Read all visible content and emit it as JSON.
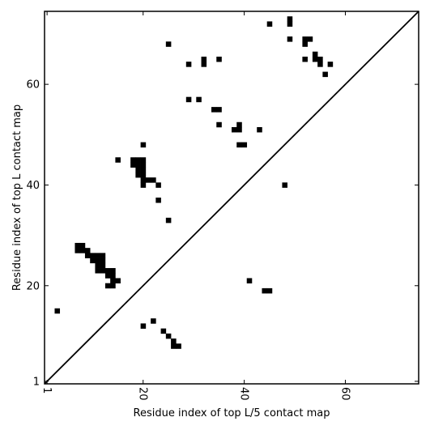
{
  "chart_data": {
    "type": "heatmap",
    "xlabel": "Residue index of top L/5 contact map",
    "ylabel": "Residue index of top L contact map",
    "xlim": [
      0.5,
      74.5
    ],
    "ylim": [
      0.5,
      74.5
    ],
    "x_ticks": [
      1,
      20,
      40,
      60
    ],
    "y_ticks": [
      1,
      20,
      40,
      60
    ],
    "grid": false,
    "diagonal_line": true,
    "colors": {
      "contact": "#000000",
      "background": "#ffffff",
      "frame": "#000000"
    },
    "contacts_top_L": [
      [
        25,
        68
      ],
      [
        29,
        64
      ],
      [
        32,
        65
      ],
      [
        32,
        64
      ],
      [
        35,
        65
      ],
      [
        45,
        72
      ],
      [
        49,
        73
      ],
      [
        49,
        72
      ],
      [
        49,
        69
      ],
      [
        52,
        69
      ],
      [
        53,
        69
      ],
      [
        52,
        68
      ],
      [
        52,
        65
      ],
      [
        54,
        66
      ],
      [
        54,
        65
      ],
      [
        55,
        65
      ],
      [
        55,
        64
      ],
      [
        57,
        64
      ],
      [
        56,
        62
      ],
      [
        29,
        57
      ],
      [
        31,
        57
      ],
      [
        34,
        55
      ],
      [
        35,
        55
      ],
      [
        35,
        52
      ],
      [
        38,
        51
      ],
      [
        39,
        51
      ],
      [
        39,
        52
      ],
      [
        43,
        51
      ],
      [
        39,
        48
      ],
      [
        40,
        48
      ],
      [
        20,
        48
      ],
      [
        15,
        45
      ],
      [
        18,
        45
      ],
      [
        19,
        45
      ],
      [
        20,
        45
      ],
      [
        18,
        44
      ],
      [
        19,
        44
      ],
      [
        20,
        44
      ],
      [
        19,
        43
      ],
      [
        20,
        43
      ],
      [
        19,
        42
      ],
      [
        20,
        42
      ],
      [
        20,
        41
      ],
      [
        21,
        41
      ],
      [
        22,
        41
      ],
      [
        20,
        40
      ],
      [
        23,
        40
      ],
      [
        23,
        37
      ],
      [
        25,
        33
      ],
      [
        48,
        40
      ]
    ],
    "contacts_top_L5": [
      [
        7,
        28
      ],
      [
        8,
        28
      ],
      [
        7,
        27
      ],
      [
        8,
        27
      ],
      [
        9,
        27
      ],
      [
        9,
        26
      ],
      [
        10,
        26
      ],
      [
        11,
        26
      ],
      [
        12,
        26
      ],
      [
        10,
        25
      ],
      [
        11,
        25
      ],
      [
        12,
        25
      ],
      [
        11,
        24
      ],
      [
        12,
        24
      ],
      [
        11,
        23
      ],
      [
        12,
        23
      ],
      [
        13,
        23
      ],
      [
        14,
        23
      ],
      [
        13,
        22
      ],
      [
        14,
        22
      ],
      [
        14,
        21
      ],
      [
        15,
        21
      ],
      [
        13,
        20
      ],
      [
        14,
        20
      ],
      [
        41,
        21
      ],
      [
        44,
        19
      ],
      [
        45,
        19
      ],
      [
        3,
        15
      ],
      [
        22,
        13
      ],
      [
        20,
        12
      ],
      [
        24,
        11
      ],
      [
        25,
        10
      ],
      [
        26,
        9
      ],
      [
        26,
        8
      ],
      [
        27,
        8
      ]
    ]
  }
}
